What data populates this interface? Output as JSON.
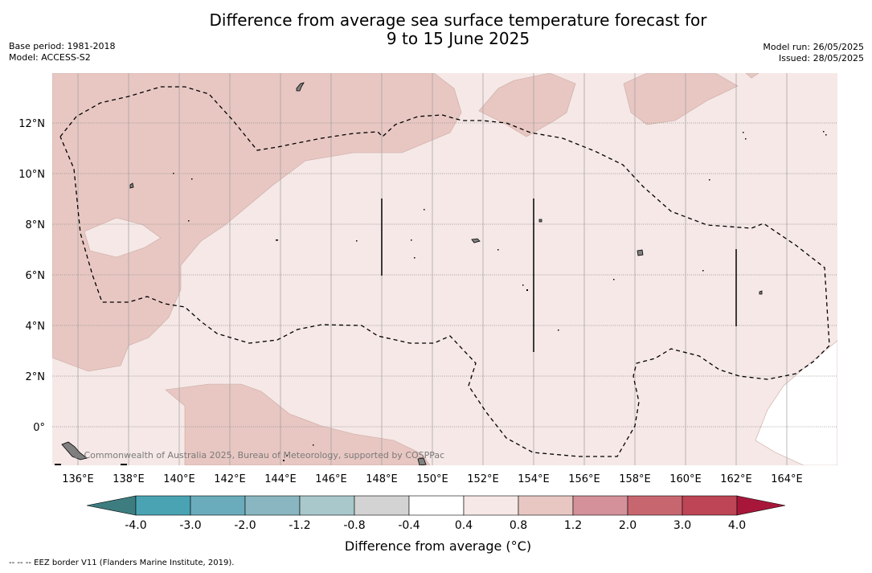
{
  "title": {
    "line1": "Difference from average sea surface temperature forecast for",
    "line2": "9 to 15 June 2025"
  },
  "meta_left": {
    "base_period": "Base period: 1981-2018",
    "model": "Model: ACCESS-S2"
  },
  "meta_right": {
    "model_run": "Model run: 26/05/2025",
    "issued": "Issued: 28/05/2025"
  },
  "map": {
    "lat_labels": [
      "12°N",
      "10°N",
      "8°N",
      "6°N",
      "4°N",
      "2°N",
      "0°"
    ],
    "lon_labels": [
      "136°E",
      "138°E",
      "140°E",
      "142°E",
      "144°E",
      "146°E",
      "148°E",
      "150°E",
      "152°E",
      "154°E",
      "156°E",
      "158°E",
      "160°E",
      "162°E",
      "164°E"
    ],
    "copyright": "© Commonwealth of Australia 2025, Bureau of Meteorology, supported by COSPPac",
    "colors": {
      "anomaly_0_4_to_0_8": "#f5e8e6",
      "anomaly_0_8_to_1_2": "#e8c7c2",
      "anomaly_neg0_4_to_0_4": "#ffffff",
      "land": "#808080",
      "eez_border": "#000000"
    }
  },
  "colorbar": {
    "tick_labels": [
      "-4.0",
      "-3.0",
      "-2.0",
      "-1.2",
      "-0.8",
      "-0.4",
      "0.4",
      "0.8",
      "1.2",
      "2.0",
      "3.0",
      "4.0"
    ],
    "colors": [
      "#3d7d80",
      "#4aa3b3",
      "#6aacbc",
      "#8ab6c1",
      "#a8c8cb",
      "#d3d3d3",
      "#ffffff",
      "#f5e8e6",
      "#e8c7c2",
      "#d4919a",
      "#c8666f",
      "#bd4555",
      "#a8173a"
    ],
    "label": "Difference from average (°C)"
  },
  "footer": "--  --  -- EEZ border V11 (Flanders Marine Institute, 2019)."
}
